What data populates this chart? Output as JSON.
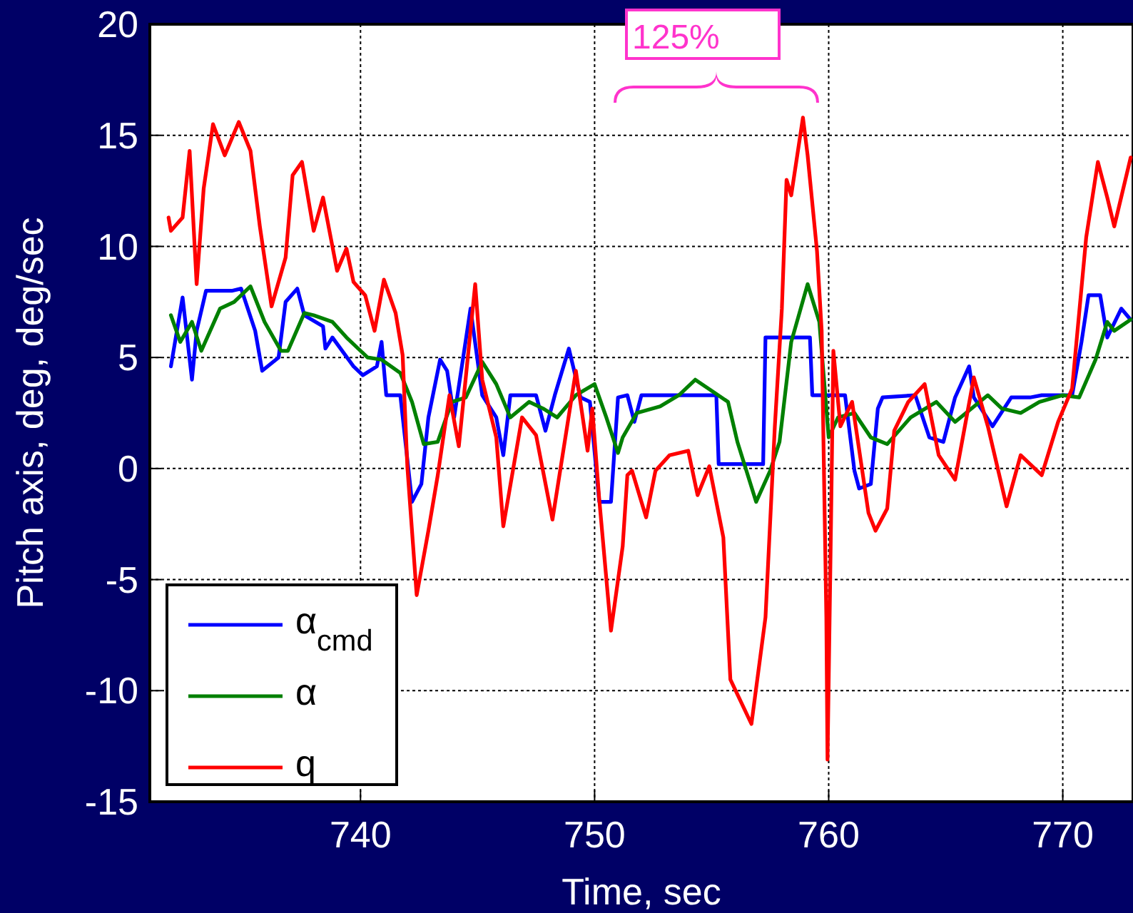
{
  "chart_data": {
    "type": "line",
    "xlabel": "Time, sec",
    "ylabel": "Pitch axis, deg, deg/sec",
    "xlim": [
      731,
      773
    ],
    "ylim": [
      -15,
      20
    ],
    "xticks": [
      740,
      750,
      760,
      770
    ],
    "yticks": [
      -15,
      -10,
      -5,
      0,
      5,
      10,
      15,
      20
    ],
    "grid": true,
    "legend": "bottom left",
    "line_style": "solid",
    "marker": "none",
    "annotations": [
      "125%"
    ],
    "series": [
      {
        "name": "α$_{cmd}$",
        "color": "#0000ff",
        "x": [
          731.9,
          732.4,
          732.8,
          733.0,
          733.4,
          734.5,
          734.9,
          735.5,
          735.8,
          736.5,
          736.8,
          737.3,
          737.6,
          738.4,
          738.5,
          738.8,
          739.7,
          740.1,
          740.7,
          740.9,
          741.1,
          741.7,
          742.2,
          742.6,
          742.9,
          743.4,
          743.7,
          744.0,
          744.7,
          745.2,
          745.8,
          746.1,
          746.4,
          747.5,
          747.9,
          748.3,
          748.9,
          749.4,
          749.8,
          750.2,
          750.7,
          751.0,
          751.4,
          751.7,
          752.0,
          755.2,
          755.3,
          757.2,
          757.3,
          759.2,
          759.3,
          760.7,
          761.1,
          761.3,
          761.8,
          762.1,
          762.3,
          763.7,
          764.3,
          764.9,
          765.4,
          766.0,
          766.2,
          767.0,
          767.8,
          768.6,
          769.1,
          770.4,
          770.8,
          771.1,
          771.6,
          771.9,
          772.5,
          772.9
        ],
        "values": [
          4.6,
          7.7,
          4.0,
          6.2,
          8.0,
          8.0,
          8.1,
          6.2,
          4.4,
          5.0,
          7.5,
          8.1,
          6.9,
          6.4,
          5.4,
          5.9,
          4.6,
          4.2,
          4.6,
          5.7,
          3.3,
          3.3,
          -1.5,
          -0.7,
          2.3,
          4.9,
          4.4,
          2.3,
          7.2,
          3.3,
          2.3,
          0.6,
          3.3,
          3.3,
          1.7,
          3.3,
          5.4,
          3.2,
          3.0,
          -1.5,
          -1.5,
          3.2,
          3.3,
          2.1,
          3.3,
          3.3,
          0.2,
          0.2,
          5.9,
          5.9,
          3.3,
          3.3,
          -0.1,
          -0.9,
          -0.7,
          2.7,
          3.2,
          3.3,
          1.4,
          1.2,
          3.2,
          4.6,
          3.2,
          1.9,
          3.2,
          3.2,
          3.3,
          3.3,
          5.7,
          7.8,
          7.8,
          5.9,
          7.2,
          6.7
        ]
      },
      {
        "name": "α",
        "color": "#008000",
        "x": [
          731.9,
          732.3,
          732.8,
          733.2,
          734.0,
          734.6,
          735.3,
          735.9,
          736.6,
          736.9,
          737.6,
          738.0,
          738.8,
          739.4,
          740.3,
          740.9,
          741.7,
          742.2,
          742.7,
          743.3,
          743.9,
          744.5,
          745.2,
          745.8,
          746.4,
          747.2,
          747.8,
          748.4,
          749.2,
          750.0,
          750.5,
          751.0,
          751.2,
          751.8,
          752.8,
          753.6,
          754.3,
          755.0,
          755.7,
          756.1,
          756.9,
          757.5,
          757.9,
          758.4,
          759.1,
          759.6,
          760.0,
          760.4,
          761.1,
          761.8,
          762.5,
          763.5,
          764.6,
          765.4,
          766.8,
          767.4,
          768.2,
          769.0,
          770.0,
          770.7,
          771.4,
          771.9,
          772.2,
          772.9
        ],
        "values": [
          6.9,
          5.7,
          6.6,
          5.3,
          7.2,
          7.5,
          8.2,
          6.6,
          5.3,
          5.3,
          7.0,
          6.9,
          6.6,
          5.9,
          5.0,
          4.9,
          4.3,
          3.0,
          1.1,
          1.2,
          3.0,
          3.2,
          4.8,
          3.8,
          2.3,
          3.0,
          2.7,
          2.3,
          3.3,
          3.8,
          2.3,
          0.7,
          1.4,
          2.5,
          2.8,
          3.3,
          4.0,
          3.5,
          3.0,
          1.2,
          -1.5,
          -0.1,
          1.2,
          5.7,
          8.3,
          6.6,
          1.4,
          2.3,
          2.5,
          1.4,
          1.1,
          2.3,
          3.0,
          2.1,
          3.3,
          2.7,
          2.5,
          3.0,
          3.3,
          3.2,
          4.9,
          6.6,
          6.2,
          6.7
        ]
      },
      {
        "name": "q",
        "color": "#ff0000",
        "x": [
          731.8,
          731.9,
          732.4,
          732.7,
          733.0,
          733.3,
          733.7,
          734.2,
          734.8,
          735.3,
          735.7,
          736.2,
          736.8,
          737.1,
          737.5,
          738.0,
          738.4,
          739.0,
          739.4,
          739.7,
          740.2,
          740.6,
          741.0,
          741.5,
          741.8,
          742.0,
          742.4,
          742.9,
          743.3,
          743.8,
          744.2,
          744.9,
          745.2,
          745.8,
          746.1,
          746.9,
          747.5,
          748.2,
          749.2,
          749.7,
          749.9,
          750.2,
          750.7,
          751.2,
          751.4,
          751.6,
          752.2,
          752.6,
          753.2,
          754.0,
          754.4,
          754.9,
          755.5,
          755.8,
          756.7,
          757.3,
          757.7,
          758.0,
          758.2,
          758.4,
          758.9,
          759.1,
          759.5,
          759.7,
          759.9,
          759.95,
          760.1,
          760.2,
          760.5,
          761.0,
          761.7,
          762.0,
          762.5,
          762.8,
          763.4,
          764.1,
          764.7,
          765.4,
          766.2,
          766.8,
          767.6,
          768.2,
          769.1,
          769.8,
          770.4,
          771.0,
          771.5,
          771.9,
          772.2,
          772.9
        ],
        "values": [
          11.3,
          10.7,
          11.3,
          14.3,
          8.3,
          12.6,
          15.5,
          14.1,
          15.6,
          14.3,
          10.9,
          7.3,
          9.5,
          13.2,
          13.8,
          10.7,
          12.2,
          8.9,
          9.9,
          8.4,
          7.8,
          6.2,
          8.5,
          7.0,
          5.1,
          0.1,
          -5.7,
          -2.8,
          -0.3,
          3.3,
          1.0,
          8.3,
          4.0,
          1.4,
          -2.6,
          2.3,
          1.5,
          -2.3,
          4.4,
          0.8,
          2.7,
          -1.4,
          -7.3,
          -3.5,
          -0.3,
          -0.1,
          -2.2,
          -0.1,
          0.6,
          0.8,
          -1.2,
          0.1,
          -3.1,
          -9.5,
          -11.5,
          -6.7,
          1.9,
          7.2,
          13.0,
          12.3,
          15.8,
          14.1,
          9.8,
          6.2,
          -6.7,
          -13.1,
          -2.4,
          5.3,
          1.9,
          3.0,
          -2.0,
          -2.8,
          -1.8,
          1.7,
          3.0,
          3.8,
          0.6,
          -0.5,
          4.1,
          1.9,
          -1.7,
          0.6,
          -0.3,
          2.1,
          3.6,
          10.4,
          13.8,
          12.2,
          10.9,
          14.0
        ]
      }
    ]
  }
}
